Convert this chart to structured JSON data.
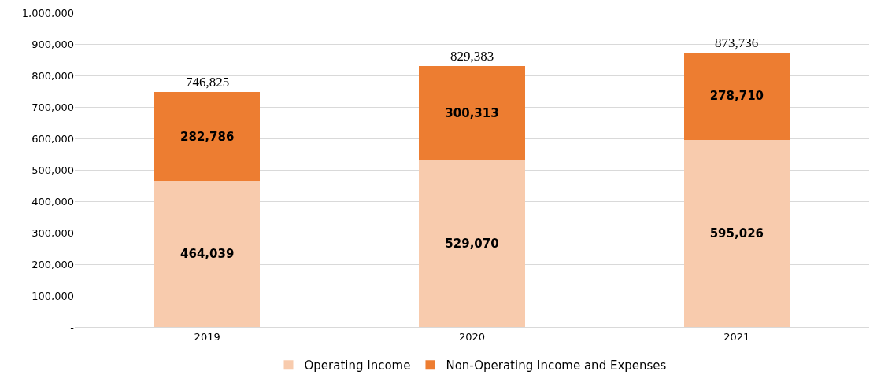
{
  "chart_data": {
    "type": "bar",
    "stacked": true,
    "categories": [
      "2019",
      "2020",
      "2021"
    ],
    "series": [
      {
        "name": "Operating Income",
        "color": "#f8cbad",
        "values": [
          464039,
          529070,
          595026
        ],
        "value_labels": [
          "464,039",
          "529,070",
          "595,026"
        ]
      },
      {
        "name": "Non-Operating Income and Expenses",
        "color": "#ed7d31",
        "values": [
          282786,
          300313,
          278710
        ],
        "value_labels": [
          "282,786",
          "300,313",
          "278,710"
        ]
      }
    ],
    "totals": [
      "746,825",
      "829,383",
      "873,736"
    ],
    "ylim": [
      0,
      1000000
    ],
    "yticks": [
      {
        "value": 0,
        "label": "-"
      },
      {
        "value": 100000,
        "label": "100,000"
      },
      {
        "value": 200000,
        "label": "200,000"
      },
      {
        "value": 300000,
        "label": "300,000"
      },
      {
        "value": 400000,
        "label": "400,000"
      },
      {
        "value": 500000,
        "label": "500,000"
      },
      {
        "value": 600000,
        "label": "600,000"
      },
      {
        "value": 700000,
        "label": "700,000"
      },
      {
        "value": 800000,
        "label": "800,000"
      },
      {
        "value": 900000,
        "label": "900,000"
      },
      {
        "value": 1000000,
        "label": "1,000,000"
      }
    ],
    "grid": "y",
    "legend": "bottom"
  }
}
